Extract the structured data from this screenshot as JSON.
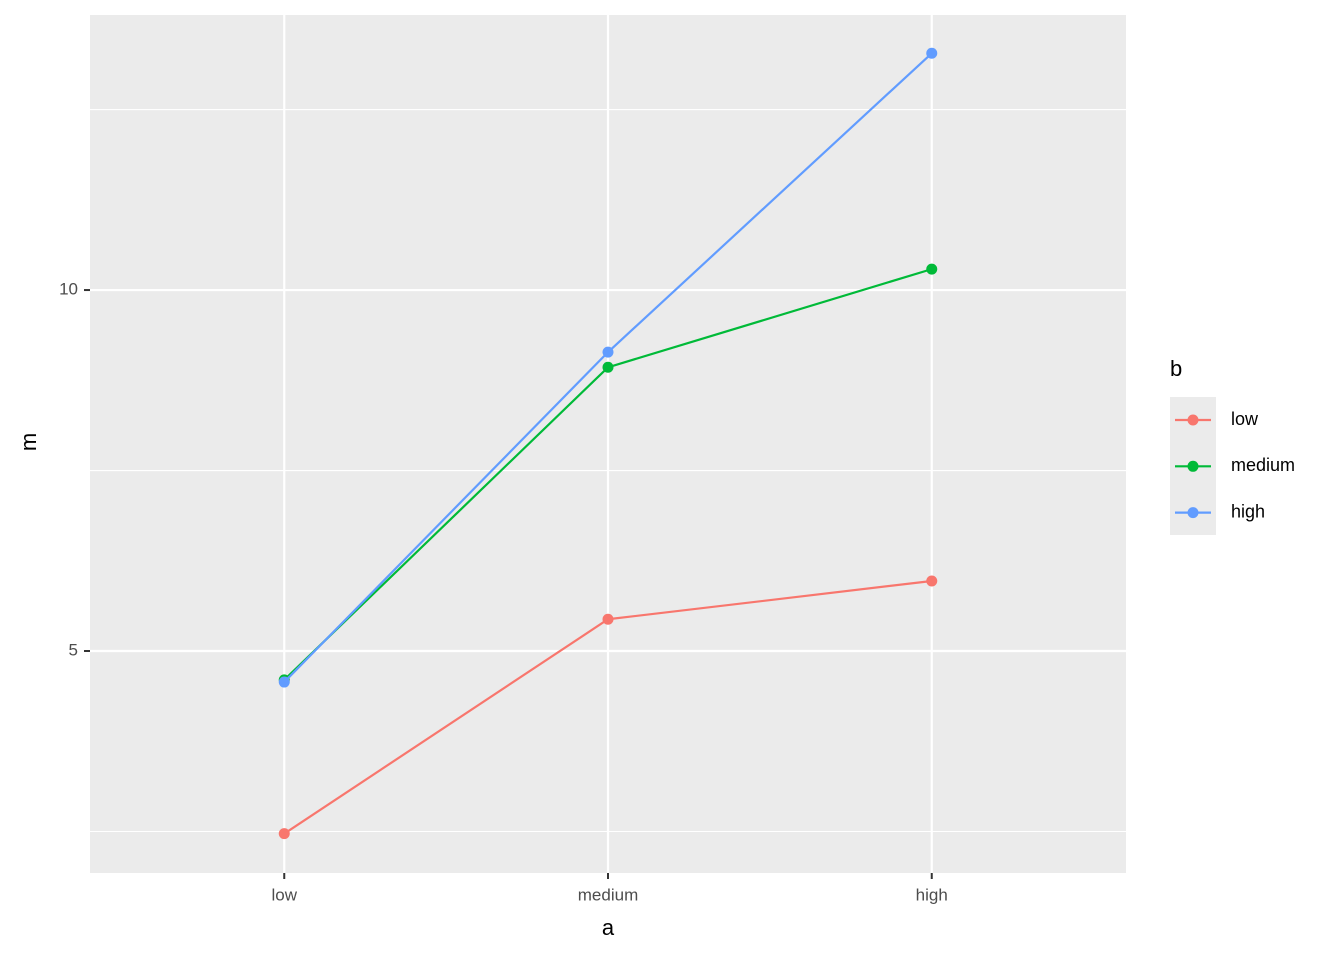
{
  "chart_data": {
    "type": "line",
    "categories": [
      "low",
      "medium",
      "high"
    ],
    "x_label": "a",
    "y_label": "m",
    "legend_title": "b",
    "legend_position": "right",
    "series": [
      {
        "name": "low",
        "color": "#f8766d",
        "values": [
          2.47,
          5.44,
          5.97
        ]
      },
      {
        "name": "medium",
        "color": "#00ba38",
        "values": [
          4.6,
          8.93,
          10.29
        ]
      },
      {
        "name": "high",
        "color": "#619cff",
        "values": [
          4.57,
          9.14,
          13.28
        ]
      }
    ],
    "ylim": [
      1.925,
      13.81
    ],
    "yticks": [
      5,
      10
    ],
    "minor_yticks": [
      2.5,
      7.5,
      12.5
    ],
    "grid": true
  }
}
